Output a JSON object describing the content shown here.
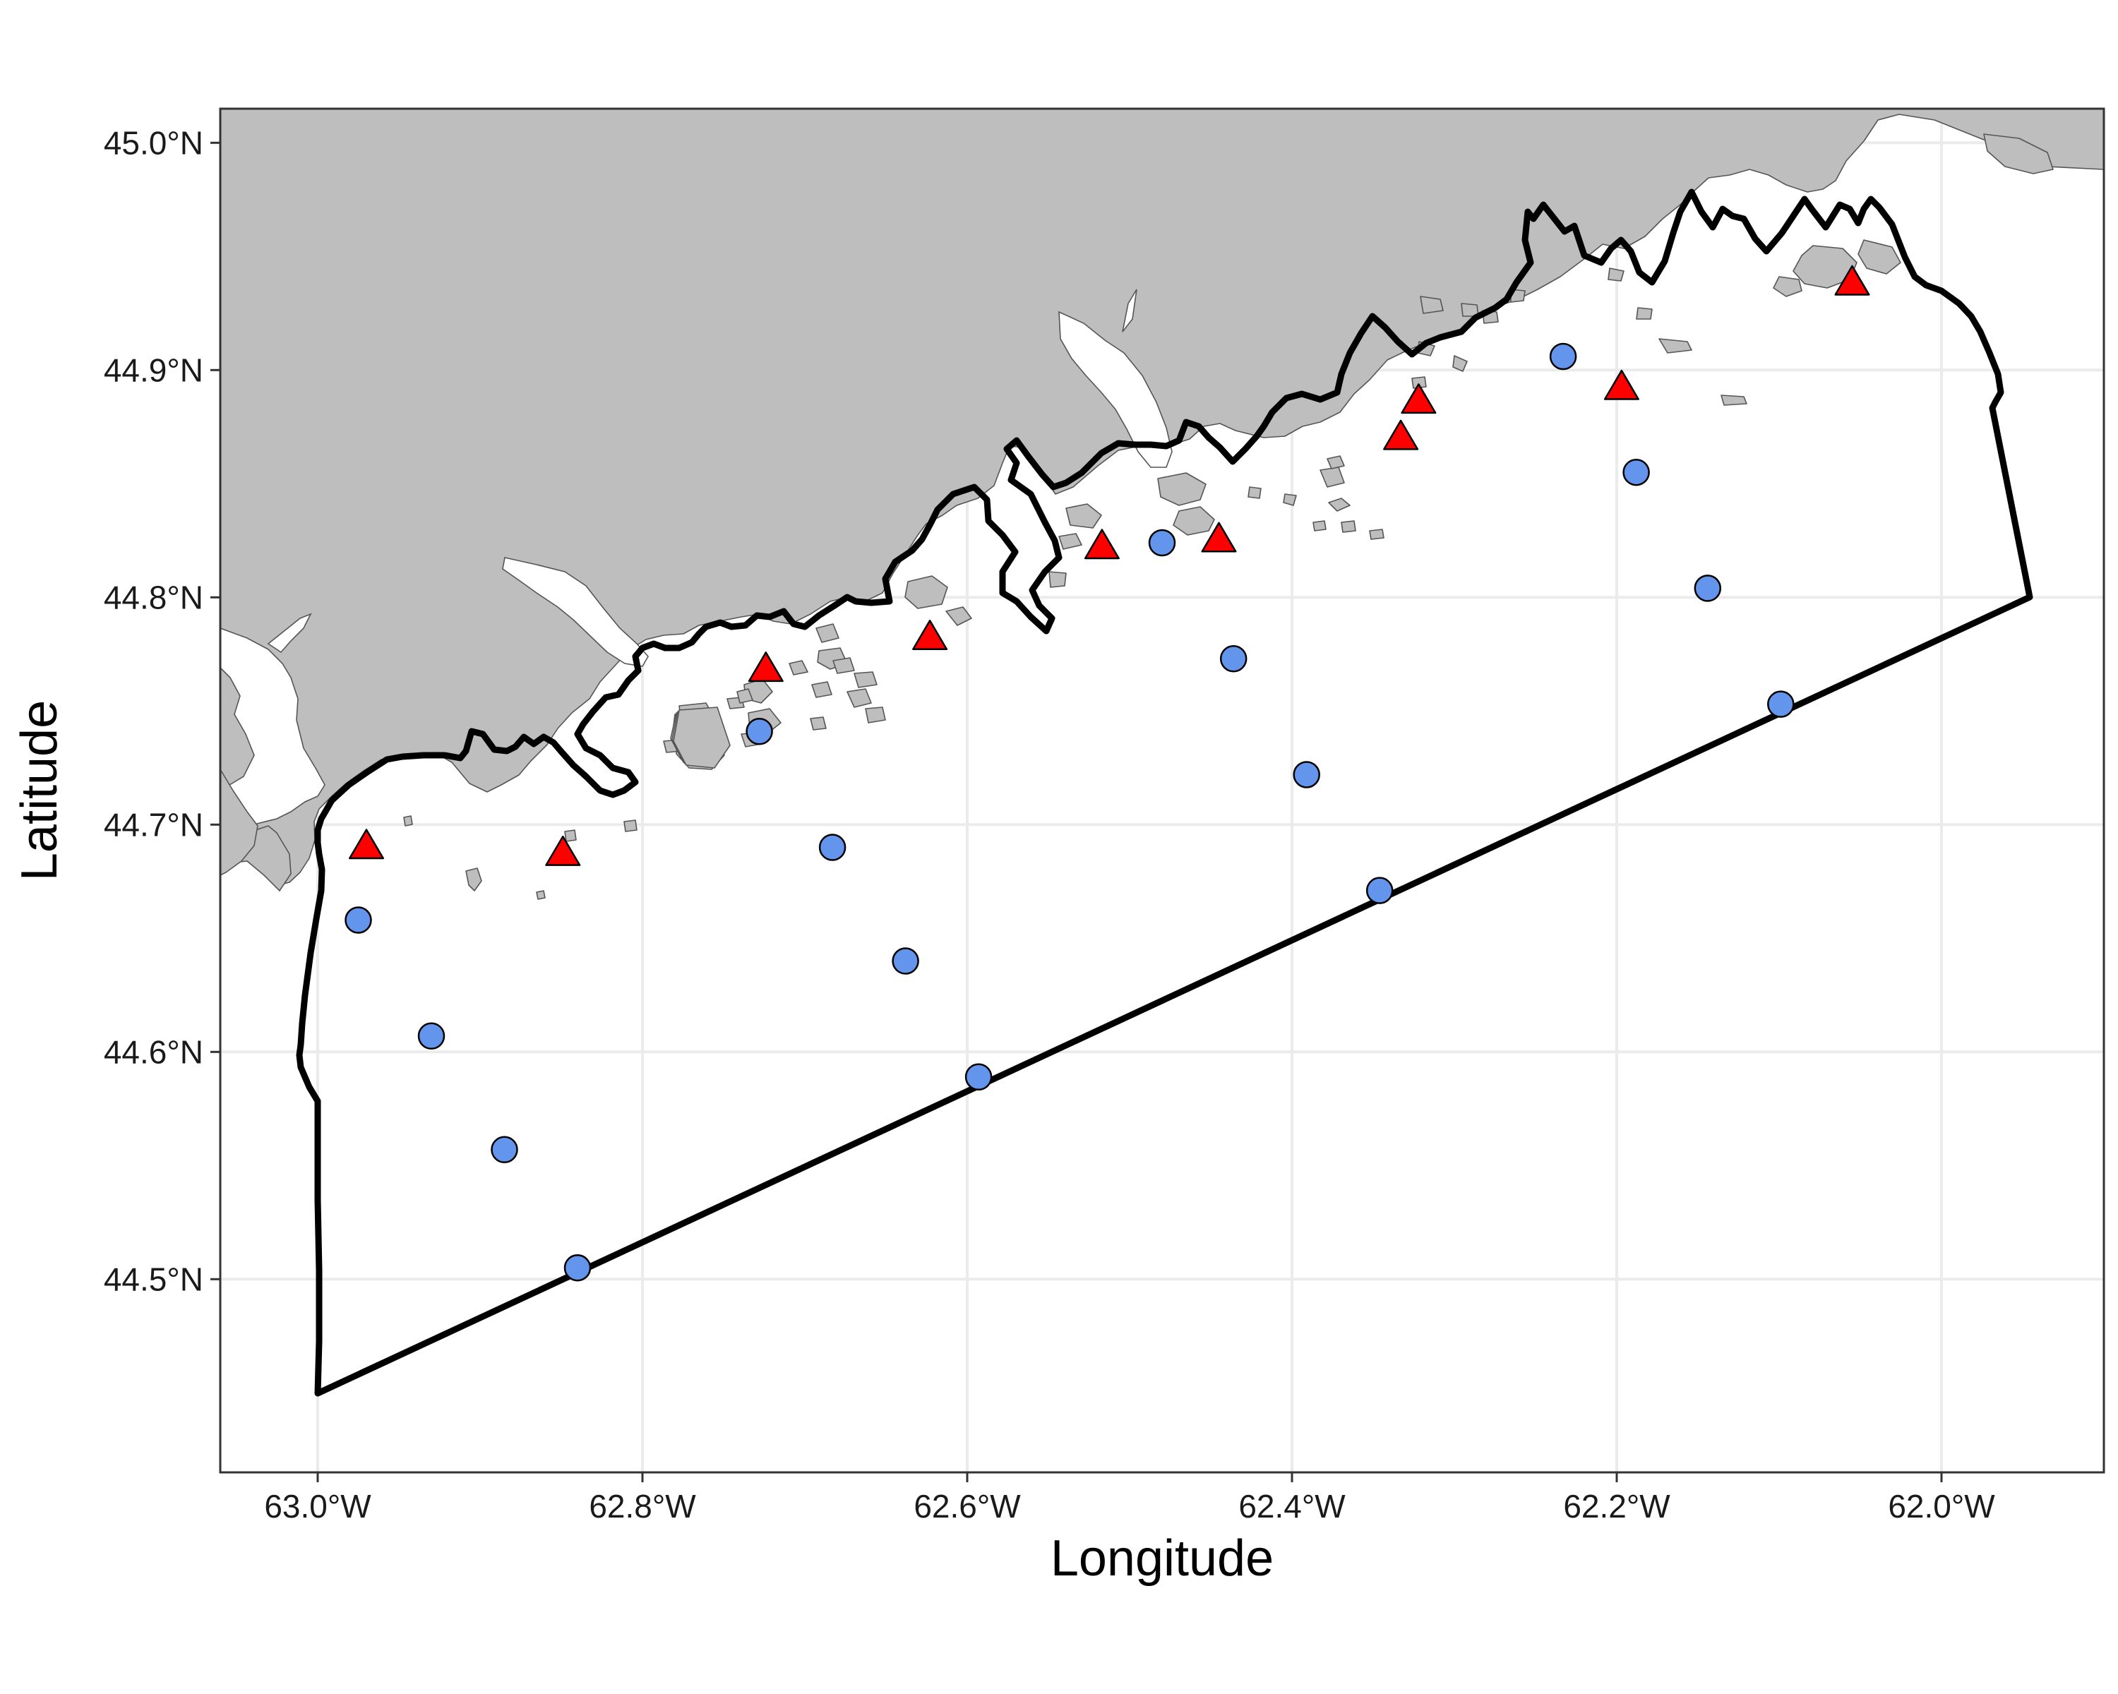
{
  "map": {
    "xlabel": "Longitude",
    "ylabel": "Latitude",
    "xlim": [
      -63.06,
      -61.9
    ],
    "ylim": [
      44.415,
      45.015
    ],
    "x_ticks": [
      {
        "value": -63.0,
        "label": "63.0°W"
      },
      {
        "value": -62.8,
        "label": "62.8°W"
      },
      {
        "value": -62.6,
        "label": "62.6°W"
      },
      {
        "value": -62.4,
        "label": "62.4°W"
      },
      {
        "value": -62.2,
        "label": "62.2°W"
      },
      {
        "value": -62.0,
        "label": "62.0°W"
      }
    ],
    "y_ticks": [
      {
        "value": 44.5,
        "label": "44.5°N"
      },
      {
        "value": 44.6,
        "label": "44.6°N"
      },
      {
        "value": 44.7,
        "label": "44.7°N"
      },
      {
        "value": 44.8,
        "label": "44.8°N"
      },
      {
        "value": 44.9,
        "label": "44.9°N"
      },
      {
        "value": 45.0,
        "label": "45.0°N"
      }
    ],
    "grid": true,
    "colors": {
      "land": "#bebebe",
      "water": "#ffffff",
      "circle_station": "#6495ed",
      "triangle_station": "#ff0000",
      "boundary": "#000000"
    }
  },
  "chart_data": {
    "type": "scatter",
    "series": [
      {
        "marker": "circle",
        "points": [
          {
            "lon": -62.975,
            "lat": 44.658
          },
          {
            "lon": -62.93,
            "lat": 44.607
          },
          {
            "lon": -62.885,
            "lat": 44.557
          },
          {
            "lon": -62.84,
            "lat": 44.505
          },
          {
            "lon": -62.728,
            "lat": 44.741
          },
          {
            "lon": -62.683,
            "lat": 44.69
          },
          {
            "lon": -62.638,
            "lat": 44.64
          },
          {
            "lon": -62.593,
            "lat": 44.589
          },
          {
            "lon": -62.48,
            "lat": 44.824
          },
          {
            "lon": -62.436,
            "lat": 44.773
          },
          {
            "lon": -62.391,
            "lat": 44.722
          },
          {
            "lon": -62.346,
            "lat": 44.671
          },
          {
            "lon": -62.233,
            "lat": 44.906
          },
          {
            "lon": -62.188,
            "lat": 44.855
          },
          {
            "lon": -62.144,
            "lat": 44.804
          },
          {
            "lon": -62.099,
            "lat": 44.753
          }
        ]
      },
      {
        "marker": "triangle",
        "points": [
          {
            "lon": -62.97,
            "lat": 44.69
          },
          {
            "lon": -62.849,
            "lat": 44.687
          },
          {
            "lon": -62.724,
            "lat": 44.768
          },
          {
            "lon": -62.623,
            "lat": 44.782
          },
          {
            "lon": -62.517,
            "lat": 44.822
          },
          {
            "lon": -62.445,
            "lat": 44.825
          },
          {
            "lon": -62.333,
            "lat": 44.87
          },
          {
            "lon": -62.322,
            "lat": 44.886
          },
          {
            "lon": -62.197,
            "lat": 44.892
          },
          {
            "lon": -62.055,
            "lat": 44.938
          }
        ]
      }
    ]
  }
}
